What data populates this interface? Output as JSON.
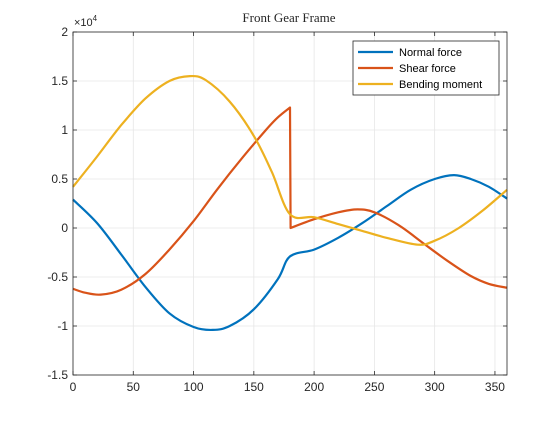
{
  "chart_data": {
    "type": "line",
    "title": "Front Gear Frame",
    "xlabel": "",
    "ylabel": "",
    "xlim": [
      0,
      360
    ],
    "ylim": [
      -15000,
      20000
    ],
    "y_exponent_label": "×10",
    "y_exponent_power": "4",
    "x_ticks": [
      0,
      50,
      100,
      150,
      200,
      250,
      300,
      350
    ],
    "x_tick_labels": [
      "0",
      "50",
      "100",
      "150",
      "200",
      "250",
      "300",
      "350"
    ],
    "y_ticks": [
      -15000,
      -10000,
      -5000,
      0,
      5000,
      10000,
      15000,
      20000
    ],
    "y_tick_labels": [
      "-1.5",
      "-1",
      "-0.5",
      "0",
      "0.5",
      "1",
      "1.5",
      "2"
    ],
    "grid": true,
    "legend_position": "top-right",
    "series": [
      {
        "name": "Normal force",
        "color": "#0072bd",
        "x": [
          0,
          20,
          40,
          60,
          80,
          100,
          116,
          130,
          150,
          170,
          180,
          200,
          220,
          240,
          260,
          280,
          300,
          316,
          330,
          345,
          360
        ],
        "y": [
          2900,
          500,
          -2700,
          -6000,
          -8700,
          -10100,
          -10400,
          -10000,
          -8300,
          -5200,
          -2900,
          -2200,
          -1000,
          500,
          2200,
          3900,
          5000,
          5400,
          5000,
          4200,
          3000
        ]
      },
      {
        "name": "Shear force",
        "color": "#d95319",
        "x": [
          0,
          10,
          23,
          40,
          60,
          80,
          100,
          120,
          140,
          160,
          170,
          180,
          180.5,
          200,
          220,
          236,
          250,
          270,
          290,
          310,
          330,
          345,
          360
        ],
        "y": [
          -6200,
          -6600,
          -6800,
          -6300,
          -4700,
          -2200,
          700,
          4000,
          7100,
          10000,
          11300,
          12300,
          0,
          900,
          1600,
          1900,
          1600,
          300,
          -1500,
          -3300,
          -4900,
          -5700,
          -6100
        ]
      },
      {
        "name": "Bending moment",
        "color": "#edb120",
        "x": [
          0,
          20,
          40,
          60,
          80,
          97,
          110,
          130,
          150,
          165,
          180,
          200,
          220,
          240,
          260,
          286,
          300,
          320,
          340,
          360
        ],
        "y": [
          4200,
          7300,
          10500,
          13200,
          15000,
          15500,
          15100,
          12900,
          9400,
          5700,
          1400,
          1100,
          400,
          -300,
          -1000,
          -1700,
          -1300,
          0,
          1800,
          3900
        ]
      }
    ]
  }
}
